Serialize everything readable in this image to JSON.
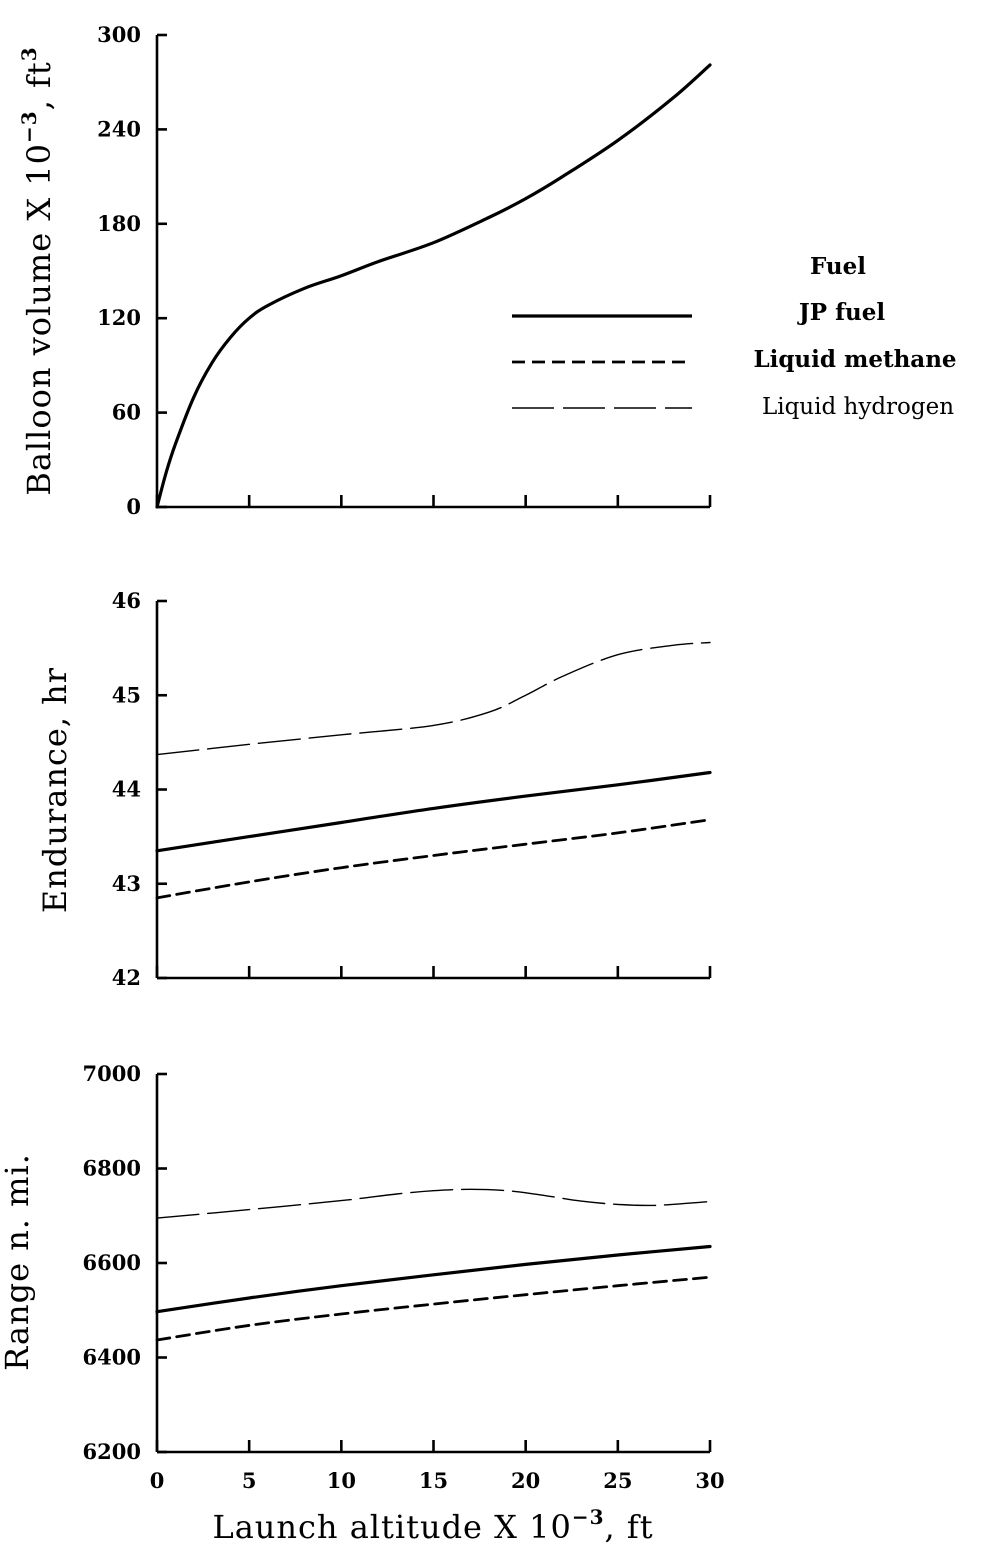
{
  "chart_data": {
    "type": "line",
    "x_axis": {
      "label_main": "Launch altitude X 10",
      "label_exp": "−3",
      "label_tail": ", ft",
      "ticks": [
        0,
        5,
        10,
        15,
        20,
        25,
        30
      ],
      "range": [
        0,
        30
      ]
    },
    "legend": {
      "title": "Fuel",
      "placement": "right of top panel",
      "entries": [
        {
          "label": "JP fuel",
          "style": "solid"
        },
        {
          "label": "Liquid methane",
          "style": "dashed"
        },
        {
          "label": "Liquid hydrogen",
          "style": "long-dash-thin"
        }
      ]
    },
    "panels": [
      {
        "id": "volume",
        "ylabel_main": "Balloon volume X 10",
        "ylabel_exp": "−3",
        "ylabel_tail": ", ft",
        "ylabel_exp2": "3",
        "ylim": [
          0,
          300
        ],
        "yticks": [
          0,
          60,
          120,
          180,
          240,
          300
        ],
        "series": [
          {
            "style": "solid",
            "x": [
              0,
              0.5,
              1,
              2,
              3,
              4,
              5,
              6,
              8,
              10,
              12,
              15,
              18,
              20,
              22,
              25,
              28,
              30
            ],
            "y": [
              0,
              22,
              40,
              70,
              92,
              108,
              120,
              128,
              139,
              147,
              156,
              168,
              184,
              196,
              210,
              233,
              260,
              281
            ]
          }
        ]
      },
      {
        "id": "endurance",
        "ylabel_main": "Endurance, hr",
        "ylim": [
          42,
          46
        ],
        "yticks": [
          42,
          43,
          44,
          45,
          46
        ],
        "series": [
          {
            "style": "solid",
            "x": [
              0,
              5,
              10,
              15,
              20,
              25,
              30
            ],
            "y": [
              43.35,
              43.5,
              43.65,
              43.8,
              43.93,
              44.05,
              44.18
            ]
          },
          {
            "style": "dashed",
            "x": [
              0,
              5,
              10,
              15,
              20,
              25,
              30
            ],
            "y": [
              42.85,
              43.02,
              43.17,
              43.3,
              43.42,
              43.54,
              43.68
            ]
          },
          {
            "style": "long-dash-thin",
            "x": [
              0,
              5,
              10,
              15,
              18,
              20,
              22,
              25,
              28,
              30
            ],
            "y": [
              44.37,
              44.48,
              44.58,
              44.68,
              44.82,
              45.0,
              45.2,
              45.43,
              45.53,
              45.56
            ]
          }
        ]
      },
      {
        "id": "range",
        "ylabel_main": "Range n. mi.",
        "ylim": [
          6200,
          7000
        ],
        "yticks": [
          6200,
          6400,
          6600,
          6800,
          7000
        ],
        "series": [
          {
            "style": "solid",
            "x": [
              0,
              5,
              10,
              15,
              20,
              25,
              30
            ],
            "y": [
              6497,
              6526,
              6552,
              6575,
              6597,
              6617,
              6635
            ]
          },
          {
            "style": "dashed",
            "x": [
              0,
              5,
              10,
              15,
              20,
              25,
              30
            ],
            "y": [
              6437,
              6468,
              6492,
              6513,
              6533,
              6552,
              6570
            ]
          },
          {
            "style": "long-dash-thin",
            "x": [
              0,
              5,
              10,
              13,
              15,
              17,
              19,
              21,
              23,
              25,
              27,
              30
            ],
            "y": [
              6695,
              6713,
              6732,
              6746,
              6753,
              6756,
              6753,
              6743,
              6731,
              6724,
              6722,
              6730
            ]
          }
        ]
      }
    ]
  }
}
